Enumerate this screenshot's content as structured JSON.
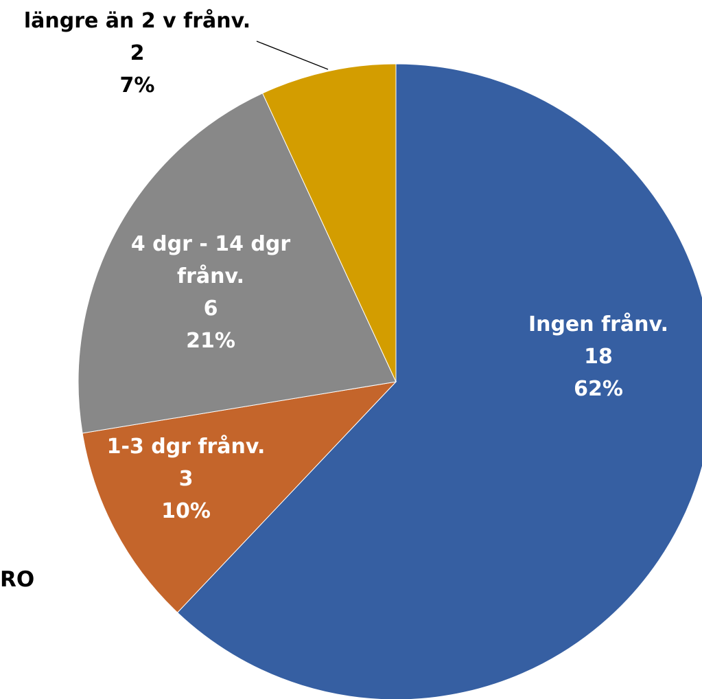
{
  "chart_data": {
    "type": "pie",
    "title": "",
    "slices": [
      {
        "label_lines": [
          "Ingen frånv."
        ],
        "count": "18",
        "percent": "62%",
        "value": 18,
        "color": "#365FA2"
      },
      {
        "label_lines": [
          "1-3 dgr frånv."
        ],
        "count": "3",
        "percent": "10%",
        "value": 3,
        "color": "#C4652B"
      },
      {
        "label_lines": [
          "4 dgr - 14 dgr",
          "frånv."
        ],
        "count": "6",
        "percent": "21%",
        "value": 6,
        "color": "#888888"
      },
      {
        "label_lines": [
          "längre än 2 v frånv."
        ],
        "count": "2",
        "percent": "7%",
        "value": 2,
        "color": "#D39D00"
      }
    ]
  },
  "cut_text": "RO"
}
